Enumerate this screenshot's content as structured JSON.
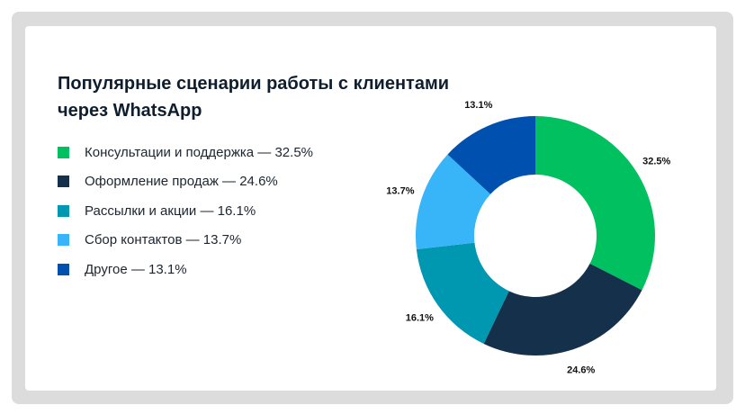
{
  "chart_data": {
    "type": "pie",
    "title": "Популярные сценарии работы с клиентами через WhatsApp",
    "donut": true,
    "legend_position": "left",
    "categories": [
      "Консультации и поддержка",
      "Оформление продаж",
      "Рассылки и акции",
      "Сбор контактов",
      "Другое"
    ],
    "values": [
      32.5,
      24.6,
      16.1,
      13.7,
      13.1
    ],
    "value_labels": [
      "32.5%",
      "24.6%",
      "16.1%",
      "13.7%",
      "13.1%"
    ],
    "legend_labels": [
      "Консультации и поддержка — 32.5%",
      "Оформление продаж — 24.6%",
      "Рассылки и акции — 16.1%",
      "Сбор контактов — 13.7%",
      "Другое — 13.1%"
    ],
    "colors": [
      "#00c060",
      "#14304a",
      "#0098b0",
      "#38b4f8",
      "#0050b0"
    ]
  }
}
